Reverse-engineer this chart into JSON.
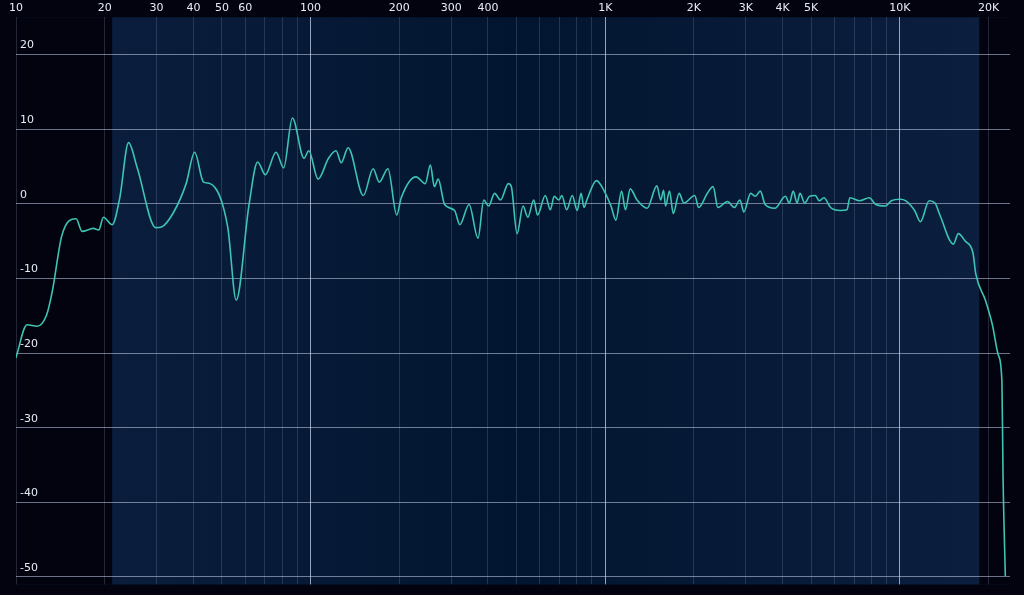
{
  "chart_data": {
    "type": "line",
    "xlim": [
      10,
      23650
    ],
    "ylim": [
      -51,
      25
    ],
    "log": "x",
    "grid": true,
    "legend": false,
    "marker": "none",
    "line_style": "solid",
    "xticks": [
      10,
      20,
      30,
      40,
      50,
      60,
      {
        "value": 70,
        "label": null
      },
      {
        "value": 80,
        "label": null
      },
      {
        "value": 90,
        "label": null
      },
      100,
      200,
      300,
      400,
      {
        "value": 500,
        "label": null
      },
      {
        "value": 600,
        "label": null
      },
      {
        "value": 700,
        "label": null
      },
      {
        "value": 800,
        "label": null
      },
      {
        "value": 900,
        "label": null
      },
      {
        "value": 1000,
        "label": "1K"
      },
      {
        "value": 2000,
        "label": "2K"
      },
      {
        "value": 3000,
        "label": "3K"
      },
      {
        "value": 4000,
        "label": "4K"
      },
      {
        "value": 5000,
        "label": "5K"
      },
      {
        "value": 6000,
        "label": null
      },
      {
        "value": 7000,
        "label": null
      },
      {
        "value": 8000,
        "label": null
      },
      {
        "value": 9000,
        "label": null
      },
      {
        "value": 10000,
        "label": "10K"
      },
      {
        "value": 20000,
        "label": "20K"
      }
    ],
    "yticks": [
      20,
      10,
      0,
      -10,
      -20,
      -30,
      -40,
      -50
    ],
    "bands": [
      {
        "axis": "x",
        "from": 10,
        "to": 21.2,
        "color": "#02030f"
      },
      {
        "axis": "x",
        "from": 18600,
        "to": 23650,
        "color": "#02030f"
      }
    ],
    "series": [
      {
        "color": "#3ec4b2",
        "x": [
          10,
          10.9,
          11.8,
          12.7,
          13.3,
          14.3,
          16.0,
          16.75,
          18.3,
          19.1,
          19.8,
          21.2,
          22.5,
          24.1,
          25.8,
          29.8,
          31.2,
          34.2,
          37.8,
          40.4,
          43.3,
          45.6,
          52.3,
          55.9,
          61.8,
          66.1,
          70.2,
          76.3,
          81.0,
          86.7,
          95,
          98.6,
          106,
          115,
          122,
          127,
          134,
          151,
          163,
          171,
          183,
          196,
          203,
          228,
          245,
          255,
          263,
          271,
          285,
          308,
          321,
          345,
          370,
          387,
          402,
          421,
          441,
          469,
          480,
          502,
          526,
          546,
          572,
          589,
          626,
          651,
          671,
          696,
          712,
          740,
          773,
          803,
          828,
          847,
          866,
          934,
          970,
          1046,
          1087,
          1136,
          1171,
          1216,
          1282,
          1388,
          1497,
          1543,
          1578,
          1602,
          1652,
          1702,
          1781,
          1850,
          2013,
          2075,
          2221,
          2323,
          2412,
          2601,
          2741,
          2866,
          2954,
          3115,
          3235,
          3360,
          3489,
          3763,
          4089,
          4216,
          4345,
          4479,
          4581,
          4756,
          4937,
          5165,
          5322,
          5524,
          5820,
          6275,
          6613,
          6764,
          7295,
          7868,
          8290,
          8941,
          9355,
          10019,
          10480,
          11221,
          11742,
          12575,
          13159,
          13674,
          15196,
          15793,
          16662,
          17709,
          18100,
          19500,
          20600,
          21600,
          22200,
          22400,
          22800
        ],
        "values": [
          -20.6,
          -16.2,
          -16.4,
          -14.9,
          -11.6,
          -4.3,
          -2.0,
          -3.7,
          -3.3,
          -3.5,
          -1.8,
          -2.8,
          0.8,
          8.2,
          4.8,
          -3.2,
          -3.1,
          -1.2,
          2.7,
          6.9,
          2.9,
          2.7,
          -3.1,
          -12.9,
          -0.1,
          5.6,
          3.9,
          6.9,
          4.8,
          11.5,
          6.1,
          7.1,
          3.3,
          6.1,
          7.1,
          5.5,
          7.5,
          1.1,
          4.7,
          2.9,
          4.7,
          -1.5,
          0.8,
          3.6,
          2.7,
          5.2,
          2.3,
          3.3,
          -0.1,
          -0.9,
          -2.8,
          -0.1,
          -4.6,
          0.5,
          -0.3,
          1.4,
          0.5,
          2.7,
          2.3,
          -4.0,
          -0.3,
          -1.8,
          0.5,
          -1.5,
          1.1,
          -0.8,
          1.0,
          0.5,
          1.1,
          -0.8,
          1.1,
          -0.9,
          1.4,
          -0.5,
          0.5,
          3.1,
          2.4,
          -0.3,
          -2.2,
          1.7,
          -0.8,
          2.0,
          0.5,
          -0.6,
          2.4,
          0.5,
          1.8,
          -0.3,
          1.7,
          -1.3,
          1.4,
          0.1,
          1.1,
          -0.5,
          1.4,
          2.3,
          -0.5,
          0.3,
          -0.5,
          0.5,
          -1.1,
          1.4,
          1.0,
          1.7,
          -0.1,
          -0.6,
          1.0,
          0.1,
          1.7,
          0.1,
          1.4,
          0.1,
          1.0,
          1.1,
          0.4,
          0.8,
          -0.5,
          -0.9,
          -0.8,
          0.8,
          0.4,
          0.8,
          -0.1,
          -0.3,
          0.4,
          0.6,
          0.4,
          -0.9,
          -2.4,
          0.4,
          0.1,
          -1.5,
          -5.4,
          -4.0,
          -5.0,
          -6.6,
          -9.4,
          -12.9,
          -16.2,
          -20.3,
          -23.8,
          -36.6,
          -49.8
        ]
      }
    ]
  }
}
